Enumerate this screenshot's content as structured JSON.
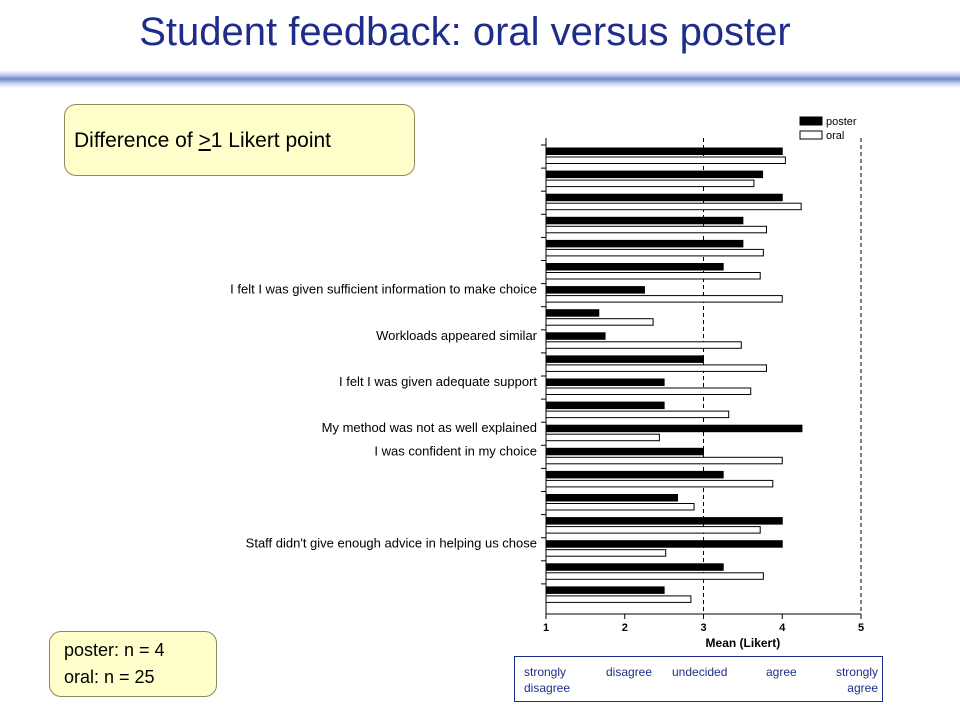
{
  "title": "Student feedback: oral versus poster",
  "callout_difference": {
    "prefix": "Difference of ",
    "underlined": ">",
    "suffix": "1 Likert point"
  },
  "sample_sizes": [
    "poster: n = 4",
    "oral: n = 25"
  ],
  "scale_labels": [
    {
      "line1": "strongly",
      "line2": "disagree"
    },
    {
      "line1": "disagree",
      "line2": ""
    },
    {
      "line1": "undecided",
      "line2": ""
    },
    {
      "line1": "agree",
      "line2": ""
    },
    {
      "line1": "strongly",
      "line2": "agree"
    }
  ],
  "chart_data": {
    "type": "bar",
    "orientation": "horizontal",
    "xlabel": "Mean (Likert)",
    "xlim": [
      1,
      5
    ],
    "xticks": [
      1,
      2,
      3,
      4,
      5
    ],
    "reference_lines": [
      3,
      5
    ],
    "legend_position": "top-right",
    "categories": [
      "",
      "",
      "",
      "",
      "",
      "",
      "I felt I was given sufficient information to make choice",
      "",
      "Workloads appeared similar",
      "",
      "I felt I was given adequate support",
      "",
      "My method was not as well explained",
      "I was confident in my choice",
      "",
      "",
      "",
      "Staff didn't give enough advice in helping us chose",
      "",
      ""
    ],
    "series": [
      {
        "name": "poster",
        "color": "#000000",
        "values": [
          4.0,
          3.75,
          4.0,
          3.5,
          3.5,
          3.25,
          2.25,
          1.67,
          1.75,
          3.0,
          2.5,
          2.5,
          4.25,
          3.0,
          3.25,
          2.67,
          4.0,
          4.0,
          3.25,
          2.5
        ]
      },
      {
        "name": "oral",
        "color": "#ffffff",
        "values": [
          4.04,
          3.64,
          4.24,
          3.8,
          3.76,
          3.72,
          4.0,
          2.36,
          3.48,
          3.8,
          3.6,
          3.32,
          2.44,
          4.0,
          3.88,
          2.88,
          3.72,
          2.52,
          3.76,
          2.84
        ]
      }
    ]
  }
}
